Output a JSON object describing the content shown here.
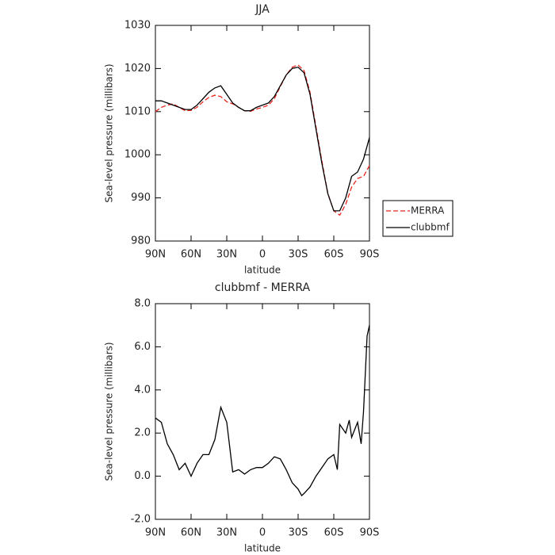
{
  "chart_data": [
    {
      "type": "line",
      "title": "JJA",
      "x_label": "latitude",
      "y_label": "Sea-level pressure (millibars)",
      "x": [
        90,
        85,
        80,
        75,
        70,
        65,
        60,
        55,
        50,
        45,
        40,
        35,
        30,
        25,
        20,
        15,
        10,
        5,
        0,
        -5,
        -10,
        -15,
        -20,
        -25,
        -30,
        -35,
        -40,
        -45,
        -50,
        -55,
        -60,
        -65,
        -70,
        -75,
        -80,
        -85,
        -90
      ],
      "series": [
        {
          "name": "MERRA",
          "color": "#e8261e",
          "dash": true,
          "values": [
            1010,
            1011,
            1011.5,
            1011.8,
            1011,
            1010.2,
            1010.3,
            1011,
            1012.3,
            1013.3,
            1013.8,
            1013.5,
            1012.3,
            1011.8,
            1011,
            1010.2,
            1010.1,
            1010.6,
            1011,
            1011.5,
            1013,
            1015.8,
            1018.5,
            1020.3,
            1020.8,
            1019.5,
            1014.5,
            1006.5,
            998.5,
            991,
            987,
            986,
            988.5,
            992.5,
            994.5,
            995,
            997.5
          ]
        },
        {
          "name": "clubbmf",
          "color": "#000000",
          "dash": false,
          "values": [
            1012.5,
            1012.5,
            1012,
            1011.5,
            1011,
            1010.5,
            1010.5,
            1011.5,
            1013,
            1014.5,
            1015.5,
            1016,
            1014,
            1012,
            1011,
            1010.2,
            1010.2,
            1011,
            1011.5,
            1012,
            1013.5,
            1016,
            1018.5,
            1020,
            1020.3,
            1019,
            1014,
            1006,
            998,
            991,
            987,
            987,
            990,
            995,
            996,
            999,
            1004
          ]
        }
      ],
      "xlim": [
        90,
        -90
      ],
      "xticks": [
        {
          "value": 90,
          "label": "90N"
        },
        {
          "value": 60,
          "label": "60N"
        },
        {
          "value": 30,
          "label": "30N"
        },
        0,
        {
          "value": -30,
          "label": "30S"
        },
        {
          "value": -60,
          "label": "60S"
        },
        {
          "value": -90,
          "label": "90S"
        }
      ],
      "ylim": [
        980,
        1030
      ],
      "yticks": [
        980,
        990,
        1000,
        1010,
        1020,
        1030
      ],
      "legend": "right"
    },
    {
      "type": "line",
      "title": "clubbmf - MERRA",
      "x_label": "latitude",
      "y_label": "Sea-level pressure (millibars)",
      "x": [
        90,
        85,
        80,
        75,
        70,
        65,
        60,
        55,
        50,
        45,
        40,
        35,
        30,
        25,
        20,
        15,
        10,
        5,
        0,
        -5,
        -10,
        -15,
        -20,
        -25,
        -30,
        -33,
        -35,
        -40,
        -45,
        -50,
        -55,
        -60,
        -63,
        -65,
        -70,
        -73,
        -75,
        -80,
        -83,
        -85,
        -88,
        -90
      ],
      "series": [
        {
          "color": "#000000",
          "values": [
            2.7,
            2.5,
            1.5,
            1.0,
            0.3,
            0.6,
            0.0,
            0.6,
            1.0,
            1.0,
            1.7,
            3.2,
            2.5,
            0.2,
            0.3,
            0.1,
            0.3,
            0.4,
            0.4,
            0.6,
            0.9,
            0.8,
            0.3,
            -0.3,
            -0.6,
            -0.9,
            -0.8,
            -0.5,
            0.0,
            0.4,
            0.8,
            1.0,
            0.3,
            2.4,
            2.0,
            2.6,
            1.8,
            2.5,
            1.5,
            3.0,
            6.5,
            7.0
          ]
        }
      ],
      "xlim": [
        90,
        -90
      ],
      "xticks": [
        {
          "value": 90,
          "label": "90N"
        },
        {
          "value": 60,
          "label": "60N"
        },
        {
          "value": 30,
          "label": "30N"
        },
        0,
        {
          "value": -30,
          "label": "30S"
        },
        {
          "value": -60,
          "label": "60S"
        },
        {
          "value": -90,
          "label": "90S"
        }
      ],
      "ylim": [
        -2,
        8
      ],
      "yticks": [
        {
          "value": -2,
          "label": "-2.0"
        },
        {
          "value": 0,
          "label": "0.0"
        },
        {
          "value": 2,
          "label": "2.0"
        },
        {
          "value": 4,
          "label": "4.0"
        },
        {
          "value": 6,
          "label": "6.0"
        },
        {
          "value": 8,
          "label": "8.0"
        }
      ]
    }
  ]
}
